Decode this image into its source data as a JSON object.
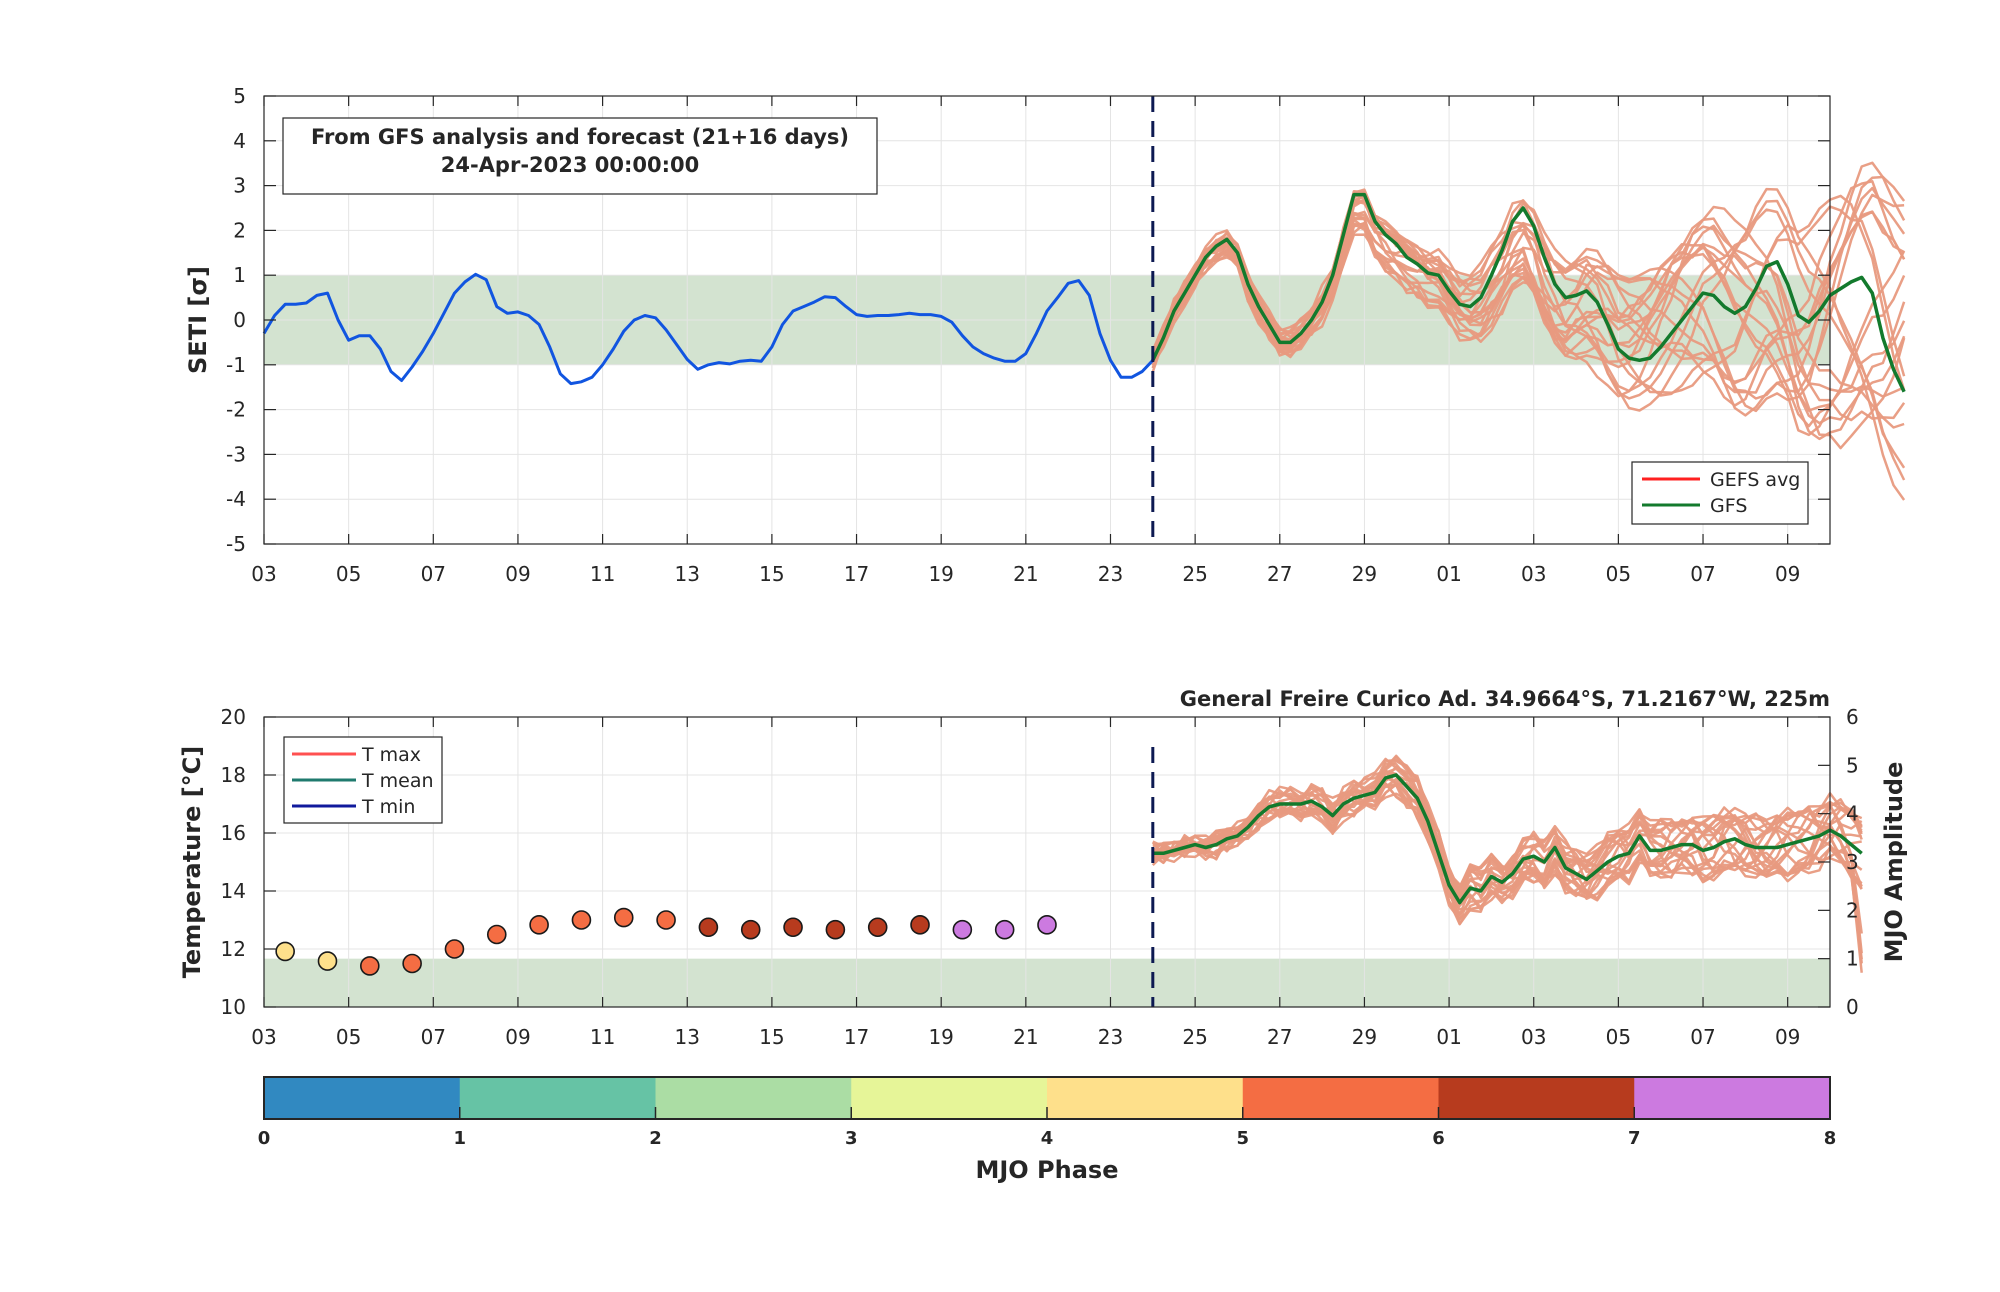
{
  "colors": {
    "band": "#d3e3d0",
    "observed": "#1155e0",
    "ensemble": "#e89a80",
    "gfs": "#137a2d",
    "gefs_avg": "#ff2020",
    "divider": "#0d1a52",
    "tmax": "#ff5050",
    "tmean": "#1f7a6e",
    "tmin": "#101a9c"
  },
  "chart_data": [
    {
      "type": "line",
      "ylabel": "SETI [σ]",
      "ylim": [
        -5,
        5
      ],
      "yticks": [
        -5,
        -4,
        -3,
        -2,
        -1,
        0,
        1,
        2,
        3,
        4,
        5
      ],
      "band": [
        -1,
        1
      ],
      "xlim_days": [
        0,
        37
      ],
      "xtick_labels": [
        "03",
        "05",
        "07",
        "09",
        "11",
        "13",
        "15",
        "17",
        "19",
        "21",
        "23",
        "25",
        "27",
        "29",
        "01",
        "03",
        "05",
        "07",
        "09"
      ],
      "analysis_end_day": 21,
      "annotation": {
        "line1": "From GFS analysis and forecast (21+16 days)",
        "line2": "24-Apr-2023 00:00:00"
      },
      "legend": [
        "GEFS avg",
        "GFS"
      ],
      "legend_position": "bottom-right",
      "grid": true,
      "series": [
        {
          "name": "observed",
          "step_days": 0.25,
          "start_day": 0,
          "values": [
            -0.3,
            0.1,
            0.35,
            0.35,
            0.38,
            0.55,
            0.6,
            0.0,
            -0.45,
            -0.35,
            -0.35,
            -0.65,
            -1.15,
            -1.35,
            -1.05,
            -0.7,
            -0.3,
            0.15,
            0.6,
            0.85,
            1.02,
            0.9,
            0.3,
            0.15,
            0.18,
            0.1,
            -0.1,
            -0.6,
            -1.2,
            -1.42,
            -1.38,
            -1.28,
            -1.0,
            -0.65,
            -0.25,
            0.0,
            0.1,
            0.05,
            -0.22,
            -0.55,
            -0.88,
            -1.1,
            -1.0,
            -0.95,
            -0.98,
            -0.92,
            -0.9,
            -0.92,
            -0.6,
            -0.1,
            0.2,
            0.3,
            0.4,
            0.52,
            0.5,
            0.3,
            0.12,
            0.08,
            0.1,
            0.1,
            0.12,
            0.15,
            0.12,
            0.12,
            0.08,
            -0.05,
            -0.35,
            -0.6,
            -0.75,
            -0.85,
            -0.92,
            -0.92,
            -0.75,
            -0.3,
            0.2,
            0.5,
            0.82,
            0.88,
            0.55,
            -0.3,
            -0.9,
            -1.28,
            -1.28,
            -1.15,
            -0.9
          ]
        },
        {
          "name": "GFS",
          "step_days": 0.25,
          "start_day": 21,
          "values": [
            -0.9,
            -0.4,
            0.2,
            0.6,
            1.0,
            1.4,
            1.65,
            1.8,
            1.5,
            0.8,
            0.3,
            -0.1,
            -0.5,
            -0.5,
            -0.3,
            0.0,
            0.4,
            1.0,
            1.9,
            2.8,
            2.8,
            2.2,
            1.9,
            1.7,
            1.4,
            1.25,
            1.05,
            1.0,
            0.65,
            0.35,
            0.3,
            0.5,
            1.0,
            1.55,
            2.2,
            2.5,
            2.1,
            1.4,
            0.8,
            0.5,
            0.55,
            0.65,
            0.4,
            -0.1,
            -0.65,
            -0.85,
            -0.9,
            -0.85,
            -0.6,
            -0.3,
            0.0,
            0.3,
            0.6,
            0.55,
            0.3,
            0.15,
            0.3,
            0.7,
            1.2,
            1.3,
            0.8,
            0.1,
            -0.05,
            0.2,
            0.55,
            0.7,
            0.85,
            0.95,
            0.6,
            -0.4,
            -1.1,
            -1.6
          ]
        }
      ],
      "ensemble": {
        "step_days": 0.25,
        "start_day": 21,
        "members_shown": 21
      }
    },
    {
      "type": "scatter",
      "title": "General Freire Curico Ad. 34.9664°S, 71.2167°W, 225m",
      "ylabel": "Temperature [°C]",
      "ylabel_right": "MJO Amplitude",
      "ylim": [
        10,
        20
      ],
      "yticks": [
        10,
        12,
        14,
        16,
        18,
        20
      ],
      "ylim_right": [
        0,
        6
      ],
      "yticks_right": [
        0,
        1,
        2,
        3,
        4,
        5,
        6
      ],
      "band_right": [
        0,
        1
      ],
      "xlim_days": [
        0,
        37
      ],
      "xtick_labels": [
        "03",
        "05",
        "07",
        "09",
        "11",
        "13",
        "15",
        "17",
        "19",
        "21",
        "23",
        "25",
        "27",
        "29",
        "01",
        "03",
        "05",
        "07",
        "09"
      ],
      "analysis_end_day": 21,
      "legend": [
        "T max",
        "T mean",
        "T min"
      ],
      "legend_position": "top-left",
      "grid": true,
      "mjo_points": {
        "days": [
          0.5,
          1.5,
          2.5,
          3.5,
          4.5,
          5.5,
          6.5,
          7.5,
          8.5,
          9.5,
          10.5,
          11.5,
          12.5,
          13.5,
          14.5,
          15.5,
          16.5,
          17.5,
          18.5
        ],
        "amplitude": [
          1.15,
          0.95,
          0.85,
          0.9,
          1.2,
          1.5,
          1.7,
          1.8,
          1.85,
          1.8,
          1.65,
          1.6,
          1.65,
          1.6,
          1.65,
          1.7,
          1.6,
          1.6,
          1.7
        ],
        "phase": [
          4,
          4,
          5,
          5,
          5,
          5,
          5,
          5,
          5,
          5,
          6,
          6,
          6,
          6,
          6,
          6,
          7,
          7,
          7
        ]
      },
      "tmean_series": {
        "name": "GFS",
        "step_days": 0.25,
        "start_day": 21,
        "values": [
          15.3,
          15.3,
          15.4,
          15.5,
          15.6,
          15.5,
          15.6,
          15.8,
          15.9,
          16.2,
          16.6,
          16.9,
          17.0,
          17.0,
          17.0,
          17.1,
          16.9,
          16.6,
          17.0,
          17.2,
          17.3,
          17.4,
          17.9,
          18.0,
          17.6,
          17.2,
          16.4,
          15.3,
          14.2,
          13.6,
          14.1,
          14.0,
          14.5,
          14.3,
          14.6,
          15.1,
          15.2,
          15.0,
          15.5,
          14.8,
          14.6,
          14.4,
          14.7,
          15.0,
          15.2,
          15.3,
          15.9,
          15.4,
          15.4,
          15.5,
          15.6,
          15.6,
          15.4,
          15.5,
          15.7,
          15.8,
          15.6,
          15.5,
          15.5,
          15.5,
          15.6,
          15.7,
          15.8,
          15.9,
          16.1,
          15.9,
          15.6,
          15.3
        ]
      },
      "ensemble": {
        "step_days": 0.25,
        "start_day": 21,
        "members_shown": 21
      }
    },
    {
      "type": "colorbar",
      "xlabel": "MJO Phase",
      "tick_labels": [
        "0",
        "1",
        "2",
        "3",
        "4",
        "5",
        "6",
        "7",
        "8"
      ],
      "colors": [
        "#3189c1",
        "#66c3a5",
        "#abdda4",
        "#e6f598",
        "#fee08b",
        "#f46d43",
        "#b73b1e",
        "#cc7ae0"
      ]
    }
  ]
}
